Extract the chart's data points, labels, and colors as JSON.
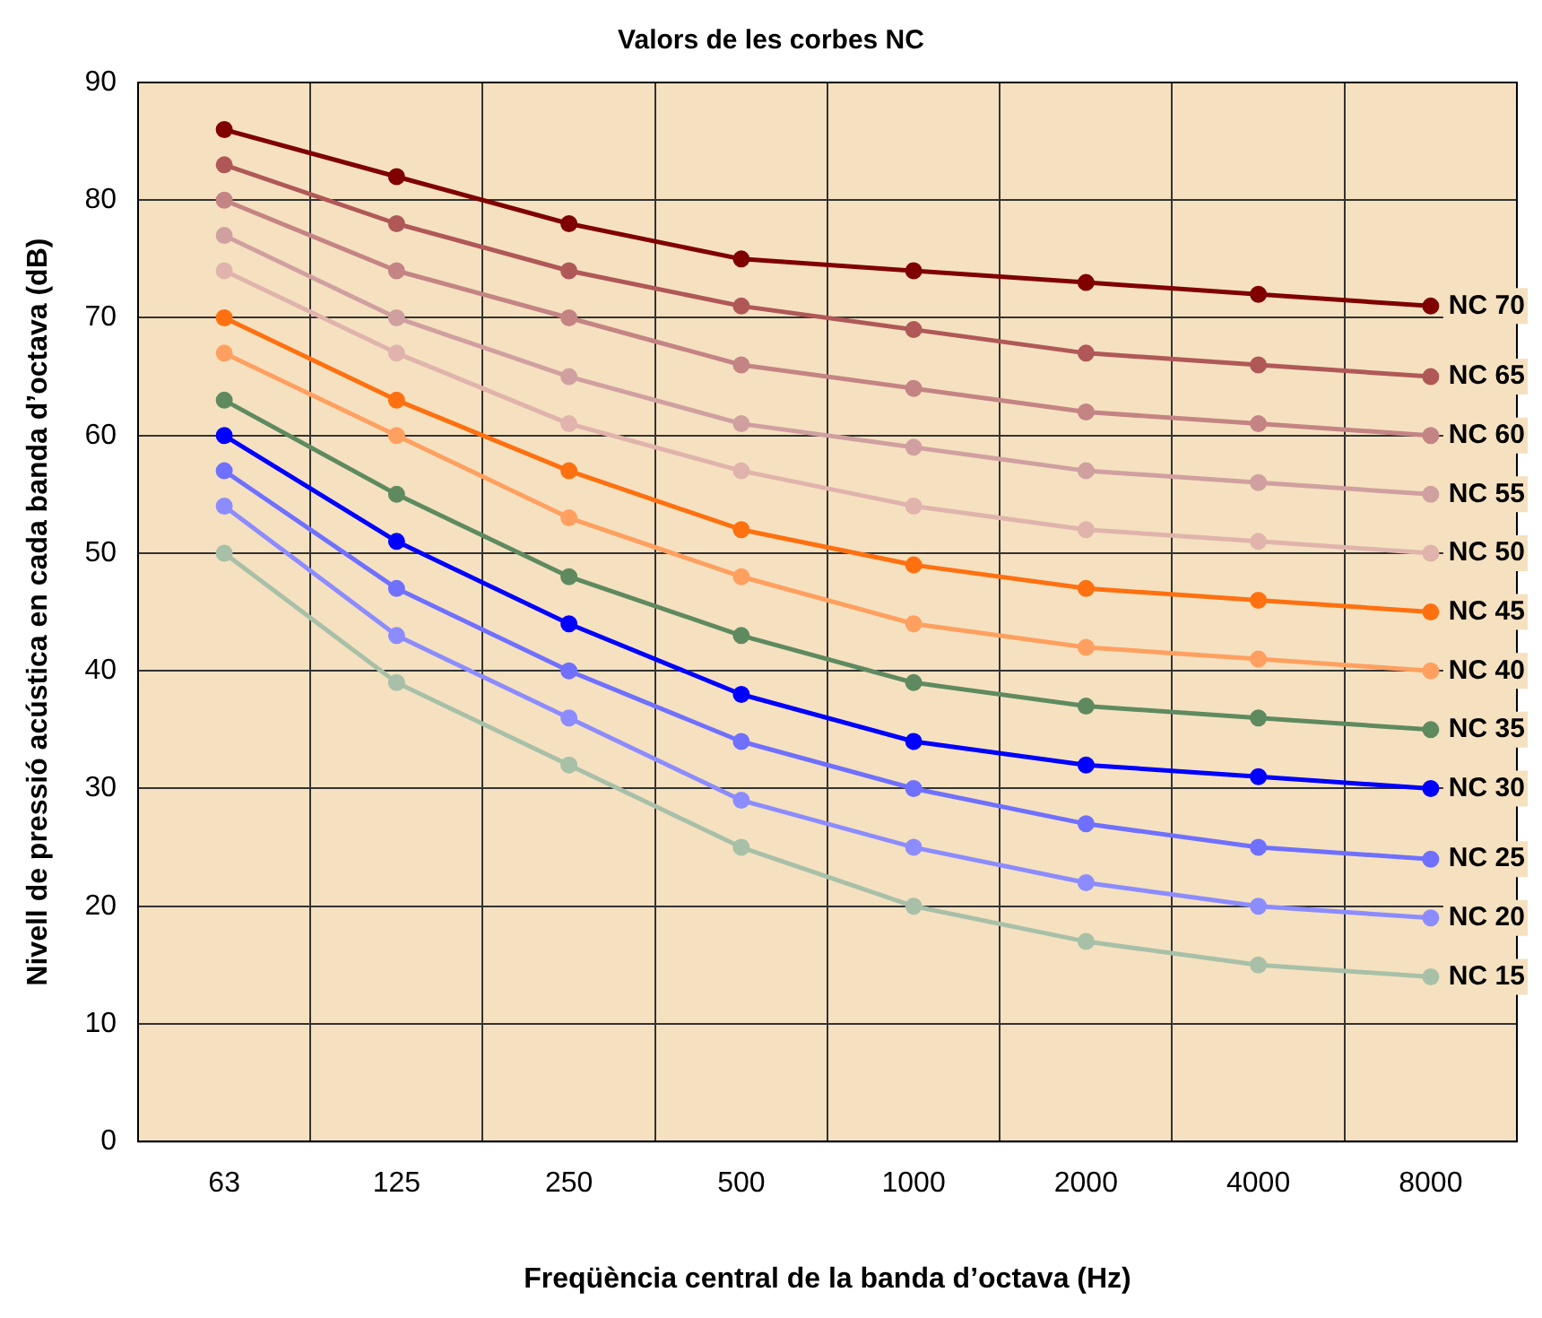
{
  "chart_data": {
    "type": "line",
    "title": "Valors de les corbes NC",
    "xlabel": "Freqüència central de la banda d’octava (Hz)",
    "ylabel": "Nivell de pressió acústica en cada banda d’octava (dB)",
    "categories": [
      "63",
      "125",
      "250",
      "500",
      "1000",
      "2000",
      "4000",
      "8000"
    ],
    "ylim": [
      0,
      90
    ],
    "yticks": [
      0,
      10,
      20,
      30,
      40,
      50,
      60,
      70,
      80,
      90
    ],
    "grid": true,
    "legend": false,
    "marker": "circle",
    "line_style": "solid",
    "series": [
      {
        "name": "NC 70",
        "color": "#800000",
        "values": [
          86,
          82,
          78,
          75,
          74,
          73,
          72,
          71
        ]
      },
      {
        "name": "NC 65",
        "color": "#b05858",
        "values": [
          83,
          78,
          74,
          71,
          69,
          67,
          66,
          65
        ]
      },
      {
        "name": "NC 60",
        "color": "#c48484",
        "values": [
          80,
          74,
          70,
          66,
          64,
          62,
          61,
          60
        ]
      },
      {
        "name": "NC 55",
        "color": "#d0a0a0",
        "values": [
          77,
          70,
          65,
          61,
          59,
          57,
          56,
          55
        ]
      },
      {
        "name": "NC 50",
        "color": "#e0b4ac",
        "values": [
          74,
          67,
          61,
          57,
          54,
          52,
          51,
          50
        ]
      },
      {
        "name": "NC 45",
        "color": "#ff7010",
        "values": [
          70,
          63,
          57,
          52,
          49,
          47,
          46,
          45
        ]
      },
      {
        "name": "NC 40",
        "color": "#ffa060",
        "values": [
          67,
          60,
          53,
          48,
          44,
          42,
          41,
          40
        ]
      },
      {
        "name": "NC 35",
        "color": "#5f8a60",
        "values": [
          63,
          55,
          48,
          43,
          39,
          37,
          36,
          35
        ]
      },
      {
        "name": "NC 30",
        "color": "#0000ff",
        "values": [
          60,
          51,
          44,
          38,
          34,
          32,
          31,
          30
        ]
      },
      {
        "name": "NC 25",
        "color": "#7070ff",
        "values": [
          57,
          47,
          40,
          34,
          30,
          27,
          25,
          24
        ]
      },
      {
        "name": "NC 20",
        "color": "#8c8cff",
        "values": [
          54,
          43,
          36,
          29,
          25,
          22,
          20,
          19
        ]
      },
      {
        "name": "NC 15",
        "color": "#a8c0a8",
        "values": [
          50,
          39,
          32,
          25,
          20,
          17,
          15,
          14
        ]
      }
    ]
  }
}
